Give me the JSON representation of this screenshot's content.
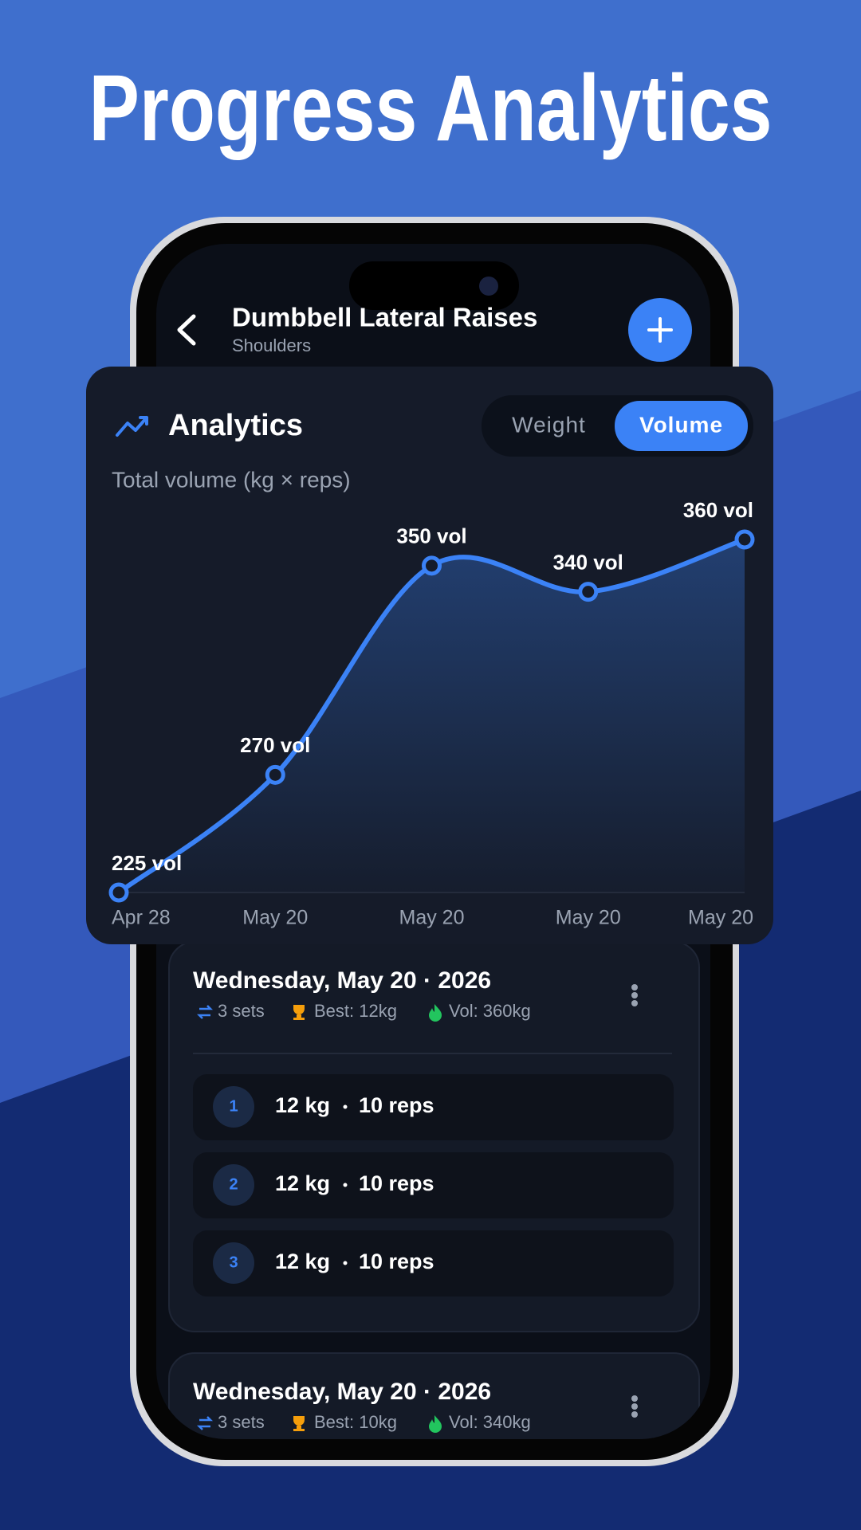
{
  "header": {
    "title": "Progress Analytics"
  },
  "app_bar": {
    "title": "Dumbbell Lateral Raises",
    "subtitle": "Shoulders"
  },
  "analytics": {
    "title": "Analytics",
    "toggle": [
      "Weight",
      "Volume"
    ],
    "selected": 1
  },
  "chart_data": {
    "type": "line",
    "subtitle": "Total volume (kg × reps)",
    "categories": [
      "Apr 28",
      "May 20",
      "May 20",
      "May 20",
      "May 20"
    ],
    "values": [
      225,
      270,
      350,
      340,
      360
    ],
    "value_labels": [
      "225 vol",
      "270 vol",
      "350 vol",
      "340 vol",
      "360 vol"
    ],
    "color": "#3b82f6",
    "ylim": [
      225,
      360
    ]
  },
  "sessions": [
    {
      "date": "Wednesday, May 20 · 2026",
      "sets": "3 sets",
      "best": "Best: 12kg",
      "vol": "Vol: 360kg",
      "rows": [
        {
          "index": 1,
          "weight": "12 kg",
          "reps": "10 reps"
        },
        {
          "index": 2,
          "weight": "12 kg",
          "reps": "10 reps"
        },
        {
          "index": 3,
          "weight": "12 kg",
          "reps": "10 reps"
        }
      ]
    },
    {
      "date": "Wednesday, May 20 · 2026",
      "sets": "3 sets",
      "best": "Best: 10kg",
      "vol": "Vol: 340kg",
      "rows": []
    }
  ]
}
